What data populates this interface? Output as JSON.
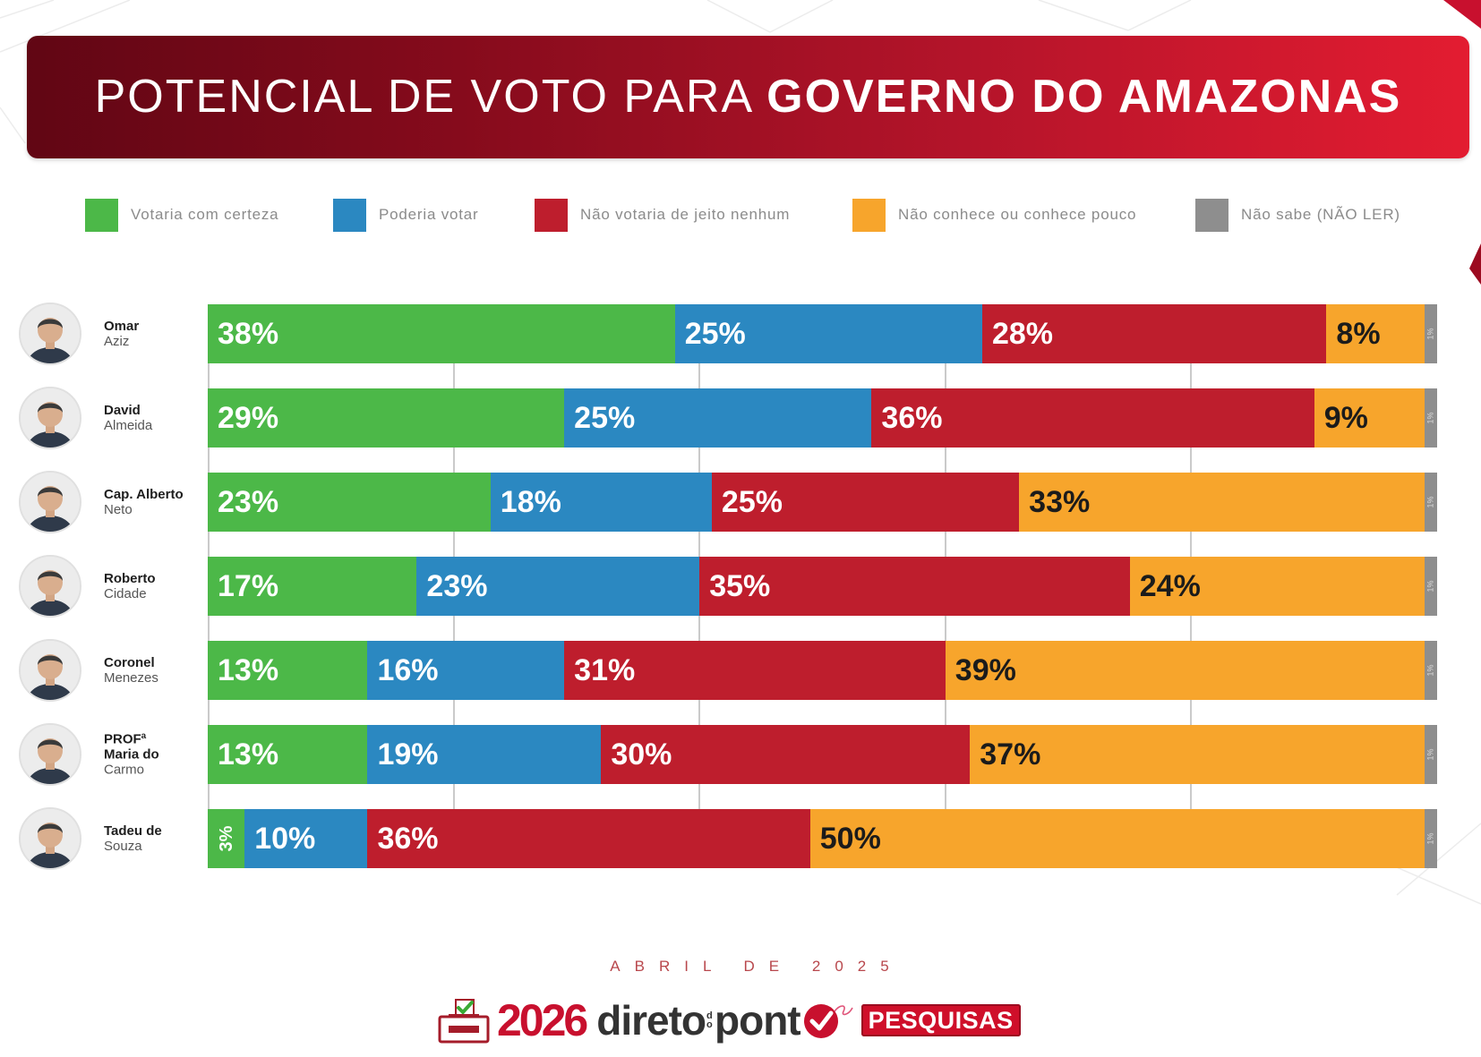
{
  "chart_data": {
    "type": "bar",
    "orientation": "horizontal",
    "stacked": true,
    "title_part1": "POTENCIAL DE VOTO PARA",
    "title_part2": "GOVERNO DO AMAZONAS",
    "unit": "%",
    "xlim": [
      0,
      100
    ],
    "grid": true,
    "legend": "top",
    "categories": [
      {
        "lines_bold": [
          "Omar"
        ],
        "line_regular": "Aziz"
      },
      {
        "lines_bold": [
          "David"
        ],
        "line_regular": "Almeida"
      },
      {
        "lines_bold": [
          "Cap. Alberto"
        ],
        "line_regular": "Neto"
      },
      {
        "lines_bold": [
          "Roberto"
        ],
        "line_regular": "Cidade"
      },
      {
        "lines_bold": [
          "Coronel"
        ],
        "line_regular": "Menezes"
      },
      {
        "lines_bold": [
          "PROFª",
          "Maria do"
        ],
        "line_regular": "Carmo"
      },
      {
        "lines_bold": [
          "Tadeu de"
        ],
        "line_regular": "Souza"
      }
    ],
    "series": [
      {
        "name": "Votaria com certeza",
        "color": "#4cb848",
        "values": [
          38,
          29,
          23,
          17,
          13,
          13,
          3
        ]
      },
      {
        "name": "Poderia votar",
        "color": "#2b88c1",
        "values": [
          25,
          25,
          18,
          23,
          16,
          19,
          10
        ]
      },
      {
        "name": "Não votaria de jeito nenhum",
        "color": "#be1e2d",
        "values": [
          28,
          36,
          25,
          35,
          31,
          30,
          36
        ]
      },
      {
        "name": "Não conhece ou conhece pouco",
        "color": "#f7a52c",
        "values": [
          8,
          9,
          33,
          24,
          39,
          37,
          50
        ]
      },
      {
        "name": "Não sabe (NÃO LER)",
        "color": "#8e8e8e",
        "values": [
          1,
          1,
          1,
          1,
          1,
          1,
          1
        ]
      }
    ]
  },
  "footer": {
    "date": "ABRIL DE 2025",
    "logo": {
      "year": "2026",
      "brand_part1": "direto",
      "brand_part2": "do",
      "brand_part3": "pont",
      "tag": "PESQUISAS"
    }
  },
  "icons": {
    "avatar": "candidate-photo",
    "ballot_box": "ballot-box-icon",
    "check": "check-circle-icon"
  },
  "colors": {
    "banner_dark": "#610614",
    "banner_light": "#e31c31",
    "accent": "#c8102e"
  }
}
